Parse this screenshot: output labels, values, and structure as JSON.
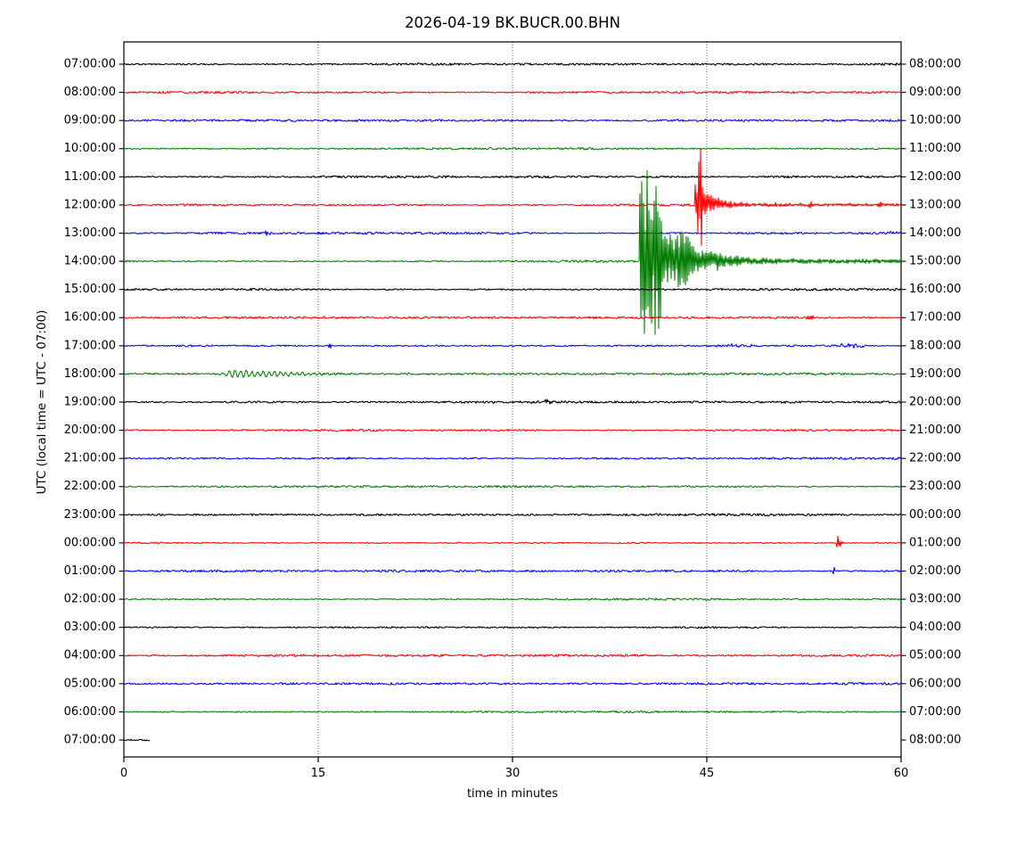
{
  "title": "2026-04-19 BK.BUCR.00.BHN",
  "x_axis": {
    "label": "time in minutes",
    "ticks": [
      0,
      15,
      30,
      45,
      60
    ],
    "min": 0,
    "max": 60,
    "gridlines": [
      15,
      30,
      45
    ]
  },
  "y_axis": {
    "label": "UTC (local time = UTC - 07:00)"
  },
  "palette": {
    "black": "#000000",
    "red": "#ff0000",
    "blue": "#0000ff",
    "green": "#007c00"
  },
  "chart_data": {
    "type": "line",
    "subtype": "seismogram-dayplot",
    "station": "BK.BUCR.00.BHN",
    "date": "2026-04-19",
    "minutes_per_line": 60,
    "color_cycle": [
      "black",
      "red",
      "blue",
      "green"
    ],
    "rows": [
      {
        "utc": "07:00:00",
        "end": "08:00:00",
        "color": "black"
      },
      {
        "utc": "08:00:00",
        "end": "09:00:00",
        "color": "red"
      },
      {
        "utc": "09:00:00",
        "end": "10:00:00",
        "color": "blue"
      },
      {
        "utc": "10:00:00",
        "end": "11:00:00",
        "color": "green"
      },
      {
        "utc": "11:00:00",
        "end": "12:00:00",
        "color": "black"
      },
      {
        "utc": "12:00:00",
        "end": "13:00:00",
        "color": "red"
      },
      {
        "utc": "13:00:00",
        "end": "14:00:00",
        "color": "blue"
      },
      {
        "utc": "14:00:00",
        "end": "15:00:00",
        "color": "green"
      },
      {
        "utc": "15:00:00",
        "end": "16:00:00",
        "color": "black"
      },
      {
        "utc": "16:00:00",
        "end": "17:00:00",
        "color": "red"
      },
      {
        "utc": "17:00:00",
        "end": "18:00:00",
        "color": "blue"
      },
      {
        "utc": "18:00:00",
        "end": "19:00:00",
        "color": "green"
      },
      {
        "utc": "19:00:00",
        "end": "20:00:00",
        "color": "black"
      },
      {
        "utc": "20:00:00",
        "end": "21:00:00",
        "color": "red"
      },
      {
        "utc": "21:00:00",
        "end": "22:00:00",
        "color": "blue"
      },
      {
        "utc": "22:00:00",
        "end": "23:00:00",
        "color": "green"
      },
      {
        "utc": "23:00:00",
        "end": "00:00:00",
        "color": "black"
      },
      {
        "utc": "00:00:00",
        "end": "01:00:00",
        "color": "red"
      },
      {
        "utc": "01:00:00",
        "end": "02:00:00",
        "color": "blue"
      },
      {
        "utc": "02:00:00",
        "end": "03:00:00",
        "color": "green"
      },
      {
        "utc": "03:00:00",
        "end": "04:00:00",
        "color": "black"
      },
      {
        "utc": "04:00:00",
        "end": "05:00:00",
        "color": "red"
      },
      {
        "utc": "05:00:00",
        "end": "06:00:00",
        "color": "blue"
      },
      {
        "utc": "06:00:00",
        "end": "07:00:00",
        "color": "green"
      },
      {
        "utc": "07:00:00",
        "end": "08:00:00",
        "color": "black",
        "duration_min": 2.0
      }
    ],
    "events": [
      {
        "row": 4,
        "type": "spike",
        "t": 18.0,
        "amp": 2.5,
        "w": 0.15
      },
      {
        "row": 5,
        "type": "quake",
        "t": 44.1,
        "amp": 50,
        "up": 1.1,
        "down": 0.75,
        "main_dur": 0.5,
        "coda_amp": 18,
        "coda_tau": 1.1,
        "tail": 1.2
      },
      {
        "row": 5,
        "type": "spike",
        "t": 44.55,
        "amp": 55,
        "w": 0.08
      },
      {
        "row": 5,
        "type": "spike",
        "t": 53.0,
        "amp": 3.0,
        "w": 0.2
      },
      {
        "row": 5,
        "type": "spike",
        "t": 58.4,
        "amp": 3.0,
        "w": 0.2
      },
      {
        "row": 6,
        "type": "spike",
        "t": 11.0,
        "amp": 2.8,
        "w": 0.15
      },
      {
        "row": 6,
        "type": "spike",
        "t": 11.3,
        "amp": 2.2,
        "w": 0.12
      },
      {
        "row": 6,
        "type": "fuzz",
        "t0": 59.0,
        "t1": 59.8,
        "amp": 2.0
      },
      {
        "row": 7,
        "type": "quake",
        "t": 39.8,
        "amp": 100,
        "up": 1.12,
        "down": 0.88,
        "main_dur": 1.7,
        "coda_amp": 34,
        "coda_tau": 2.4,
        "tail": 1.8,
        "bumps": [
          {
            "dt": 3.4,
            "amp": 26,
            "w": 0.35
          },
          {
            "dt": 6.0,
            "amp": 5,
            "w": 0.5
          }
        ]
      },
      {
        "row": 9,
        "type": "spike",
        "t": 52.8,
        "amp": 4.0,
        "w": 0.15
      },
      {
        "row": 9,
        "type": "spike",
        "t": 53.1,
        "amp": 3.2,
        "w": 0.15
      },
      {
        "row": 10,
        "type": "spike",
        "t": 15.9,
        "amp": 4.0,
        "w": 0.2
      },
      {
        "row": 10,
        "type": "fuzz",
        "t0": 46.5,
        "t1": 48.5,
        "amp": 1.6
      },
      {
        "row": 10,
        "type": "fuzz",
        "t0": 55.3,
        "t1": 57.3,
        "amp": 2.2
      },
      {
        "row": 11,
        "type": "wiggle",
        "t0": 7.6,
        "t1": 15.5,
        "amp": 5.0,
        "f": 2.3,
        "rise": 1.2,
        "tau": 4.5
      },
      {
        "row": 12,
        "type": "spike",
        "t": 32.6,
        "amp": 3.6,
        "w": 0.15
      },
      {
        "row": 12,
        "type": "spike",
        "t": 32.95,
        "amp": 3.0,
        "w": 0.15
      },
      {
        "row": 14,
        "type": "spike",
        "t": 17.3,
        "amp": 2.0,
        "w": 0.2
      },
      {
        "row": 17,
        "type": "spike",
        "t": 55.1,
        "amp": 10.0,
        "w": 0.12
      },
      {
        "row": 17,
        "type": "spike",
        "t": 55.3,
        "amp": 4.0,
        "w": 0.3
      },
      {
        "row": 18,
        "type": "spike",
        "t": 54.8,
        "amp": 6.0,
        "w": 0.1
      }
    ]
  }
}
